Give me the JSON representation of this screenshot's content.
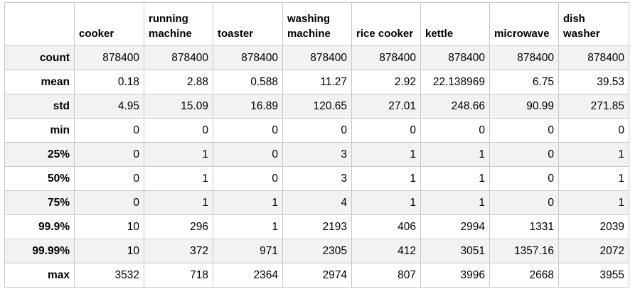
{
  "chart_data": {
    "type": "table",
    "columns": [
      "cooker",
      "running\nmachine",
      "toaster",
      "washing\nmachine",
      "rice cooker",
      "kettle",
      "microwave",
      "dish washer"
    ],
    "rows": [
      {
        "label": "count",
        "values": [
          "878400",
          "878400",
          "878400",
          "878400",
          "878400",
          "878400",
          "878400",
          "878400"
        ]
      },
      {
        "label": "mean",
        "values": [
          "0.18",
          "2.88",
          "0.588",
          "11.27",
          "2.92",
          "22.138969",
          "6.75",
          "39.53"
        ]
      },
      {
        "label": "std",
        "values": [
          "4.95",
          "15.09",
          "16.89",
          "120.65",
          "27.01",
          "248.66",
          "90.99",
          "271.85"
        ]
      },
      {
        "label": "min",
        "values": [
          "0",
          "0",
          "0",
          "0",
          "0",
          "0",
          "0",
          "0"
        ]
      },
      {
        "label": "25%",
        "values": [
          "0",
          "1",
          "0",
          "3",
          "1",
          "1",
          "0",
          "1"
        ]
      },
      {
        "label": "50%",
        "values": [
          "0",
          "1",
          "0",
          "3",
          "1",
          "1",
          "0",
          "1"
        ]
      },
      {
        "label": "75%",
        "values": [
          "0",
          "1",
          "1",
          "4",
          "1",
          "1",
          "0",
          "1"
        ]
      },
      {
        "label": "99.9%",
        "values": [
          "10",
          "296",
          "1",
          "2193",
          "406",
          "2994",
          "1331",
          "2039"
        ]
      },
      {
        "label": "99.99%",
        "values": [
          "10",
          "372",
          "971",
          "2305",
          "412",
          "3051",
          "1357.16",
          "2072"
        ]
      },
      {
        "label": "max",
        "values": [
          "3532",
          "718",
          "2364",
          "2974",
          "807",
          "3996",
          "2668",
          "3955"
        ]
      }
    ]
  }
}
